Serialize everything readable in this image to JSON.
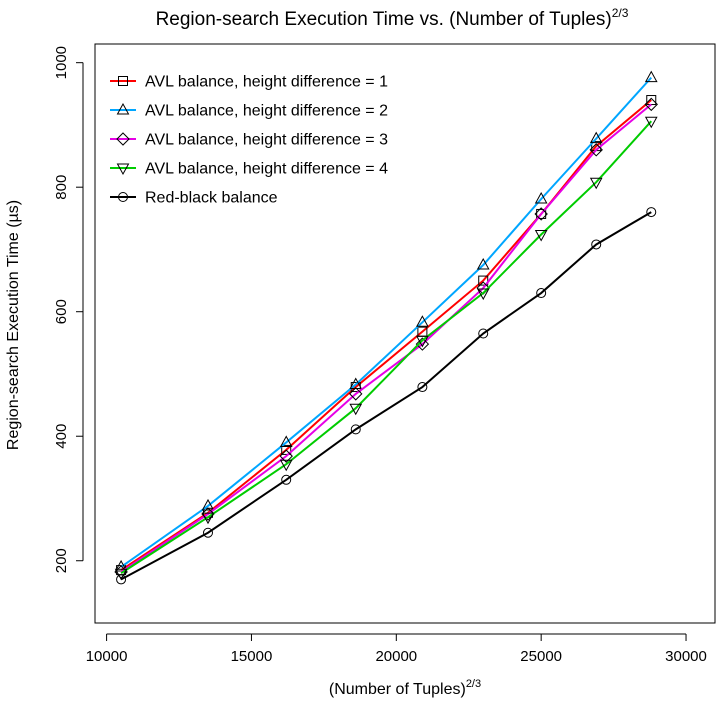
{
  "chart_data": {
    "type": "line",
    "title": "Region-search Execution Time vs. (Number of Tuples)",
    "title_superscript": "2/3",
    "xlabel": "(Number of Tuples)",
    "xlabel_superscript": "2/3",
    "ylabel": "Region-search Execution Time (µs)",
    "xlim": [
      9600,
      31000
    ],
    "ylim": [
      100,
      1030
    ],
    "x_ticks": [
      10000,
      15000,
      20000,
      25000,
      30000
    ],
    "y_ticks": [
      200,
      400,
      600,
      800,
      1000
    ],
    "grid": false,
    "legend_position": "top-left",
    "x": [
      10500,
      13500,
      16200,
      18600,
      20900,
      23000,
      25000,
      26900,
      28800
    ],
    "series": [
      {
        "name": "AVL balance, height difference = 1",
        "marker": "square",
        "color": "#ff0000",
        "values": [
          185,
          277,
          378,
          479,
          568,
          650,
          757,
          866,
          940
        ]
      },
      {
        "name": "AVL balance, height difference = 2",
        "marker": "triangle-up",
        "color": "#00a6ff",
        "values": [
          190,
          288,
          390,
          483,
          583,
          675,
          781,
          878,
          976
        ]
      },
      {
        "name": "AVL balance, height difference = 3",
        "marker": "diamond",
        "color": "#e600e6",
        "values": [
          182,
          275,
          368,
          468,
          548,
          638,
          757,
          860,
          933
        ]
      },
      {
        "name": "AVL balance, height difference = 4",
        "marker": "triangle-down",
        "color": "#00cc00",
        "values": [
          180,
          270,
          355,
          445,
          554,
          630,
          724,
          808,
          906
        ]
      },
      {
        "name": "Red-black balance",
        "marker": "circle",
        "color": "#000000",
        "values": [
          170,
          245,
          330,
          411,
          479,
          565,
          630,
          708,
          760
        ]
      }
    ]
  }
}
